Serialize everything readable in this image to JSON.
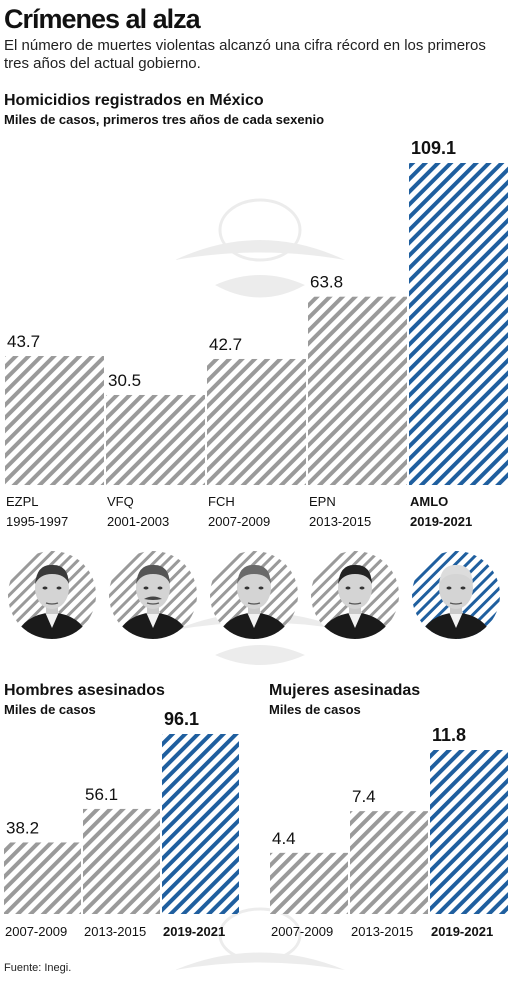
{
  "header": {
    "title": "Crímenes al alza",
    "subtitle": "El número de muertes violentas alcanzó una cifra récord en los primeros tres años del actual gobierno."
  },
  "colors": {
    "gray_stripe": "#9a9a9a",
    "blue_stripe": "#1f5f9f",
    "text": "#111111"
  },
  "chart_data": [
    {
      "type": "bar",
      "title": "Homicidios registrados en México",
      "subtitle": "Miles de casos, primeros tres años de cada sexenio",
      "categories": [
        "EZPL",
        "VFQ",
        "FCH",
        "EPN",
        "AMLO"
      ],
      "periods": [
        "1995-1997",
        "2001-2003",
        "2007-2009",
        "2013-2015",
        "2019-2021"
      ],
      "values": [
        43.7,
        30.5,
        42.7,
        63.8,
        109.1
      ],
      "value_labels": [
        "43.7",
        "30.5",
        "42.7",
        "63.8",
        "109.1"
      ],
      "highlight_index": 4,
      "ylim": [
        0,
        109.1
      ],
      "grid": false
    },
    {
      "type": "bar",
      "title": "Hombres asesinados",
      "subtitle": "Miles de casos",
      "categories": [
        "2007-2009",
        "2013-2015",
        "2019-2021"
      ],
      "values": [
        38.2,
        56.1,
        96.1
      ],
      "value_labels": [
        "38.2",
        "56.1",
        "96.1"
      ],
      "highlight_index": 2,
      "ylim": [
        0,
        96.1
      ],
      "grid": false
    },
    {
      "type": "bar",
      "title": "Mujeres asesinadas",
      "subtitle": "Miles de casos",
      "categories": [
        "2007-2009",
        "2013-2015",
        "2019-2021"
      ],
      "values": [
        4.4,
        7.4,
        11.8
      ],
      "value_labels": [
        "4.4",
        "7.4",
        "11.8"
      ],
      "highlight_index": 2,
      "ylim": [
        0,
        11.8
      ],
      "grid": false
    }
  ],
  "portraits": [
    {
      "name": "EZPL",
      "icon": "portrait-ezpl"
    },
    {
      "name": "VFQ",
      "icon": "portrait-vfq"
    },
    {
      "name": "FCH",
      "icon": "portrait-fch"
    },
    {
      "name": "EPN",
      "icon": "portrait-epn"
    },
    {
      "name": "AMLO",
      "icon": "portrait-amlo"
    }
  ],
  "footer": {
    "source": "Fuente: Inegi."
  }
}
